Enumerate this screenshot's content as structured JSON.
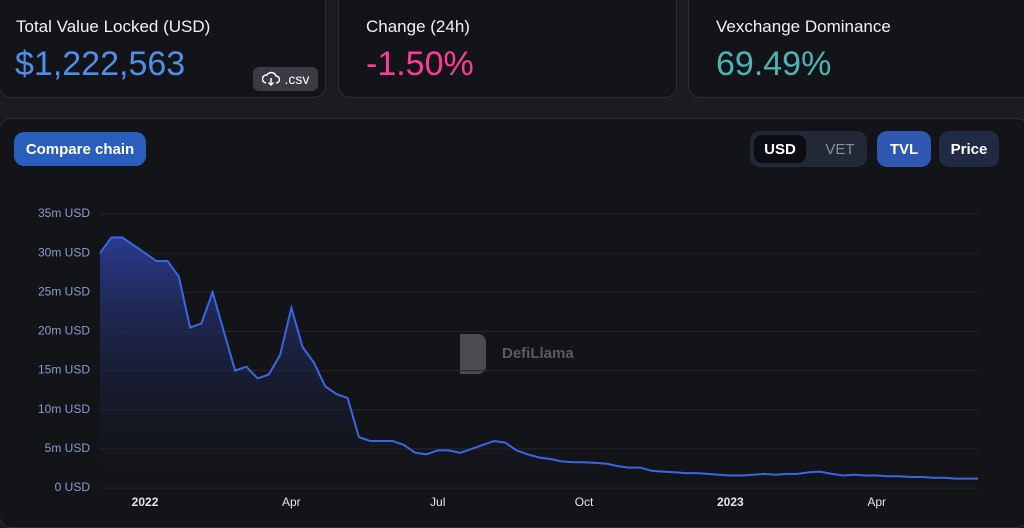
{
  "cards": [
    {
      "label": "Total Value Locked (USD)",
      "value": "$1,222,563",
      "button": ".csv"
    },
    {
      "label": "Change (24h)",
      "value": "-1.50%"
    },
    {
      "label": "Vexchange Dominance",
      "value": "69.49%"
    }
  ],
  "controls": {
    "compare": "Compare chain",
    "currency": [
      "USD",
      "VET"
    ],
    "metric": [
      "TVL",
      "Price"
    ]
  },
  "watermark": "DefiLlama",
  "chart_data": {
    "type": "area",
    "color": "#3b66e3",
    "grid": true,
    "categories": [
      null,
      null,
      null,
      null,
      "2022",
      null,
      null,
      null,
      null,
      null,
      null,
      null,
      null,
      null,
      null,
      null,
      null,
      "Apr",
      null,
      null,
      null,
      null,
      null,
      null,
      null,
      null,
      null,
      null,
      null,
      null,
      "Jul",
      null,
      null,
      null,
      null,
      null,
      null,
      null,
      null,
      null,
      null,
      null,
      null,
      "Oct",
      null,
      null,
      null,
      null,
      null,
      null,
      null,
      null,
      null,
      null,
      null,
      null,
      "2023",
      null,
      null,
      null,
      null,
      null,
      null,
      null,
      null,
      null,
      null,
      null,
      null,
      "Apr",
      null,
      null,
      null,
      null,
      null,
      null,
      null,
      null,
      null
    ],
    "values": [
      30,
      32,
      32,
      31,
      30,
      29,
      29,
      27,
      20.5,
      21,
      25,
      20,
      15,
      15.5,
      14,
      14.5,
      17,
      23,
      18,
      16,
      13,
      12,
      11.5,
      6.5,
      6,
      6,
      6,
      5.5,
      4.5,
      4.3,
      4.8,
      4.8,
      4.5,
      5,
      5.5,
      6,
      5.8,
      4.8,
      4.3,
      3.9,
      3.7,
      3.4,
      3.3,
      3.3,
      3.2,
      3.1,
      2.8,
      2.6,
      2.6,
      2.2,
      2.1,
      2.0,
      1.9,
      1.9,
      1.8,
      1.7,
      1.6,
      1.6,
      1.7,
      1.8,
      1.7,
      1.8,
      1.8,
      2.0,
      2.1,
      1.8,
      1.6,
      1.7,
      1.6,
      1.6,
      1.5,
      1.5,
      1.4,
      1.4,
      1.3,
      1.3,
      1.2,
      1.2,
      1.2
    ],
    "ylim": [
      0,
      35
    ],
    "yticks": [
      {
        "value": 0,
        "label": "0 USD"
      },
      {
        "value": 5,
        "label": "5m USD"
      },
      {
        "value": 10,
        "label": "10m USD"
      },
      {
        "value": 15,
        "label": "15m USD"
      },
      {
        "value": 20,
        "label": "20m USD"
      },
      {
        "value": 25,
        "label": "25m USD"
      },
      {
        "value": 30,
        "label": "30m USD"
      },
      {
        "value": 35,
        "label": "35m USD"
      }
    ]
  }
}
